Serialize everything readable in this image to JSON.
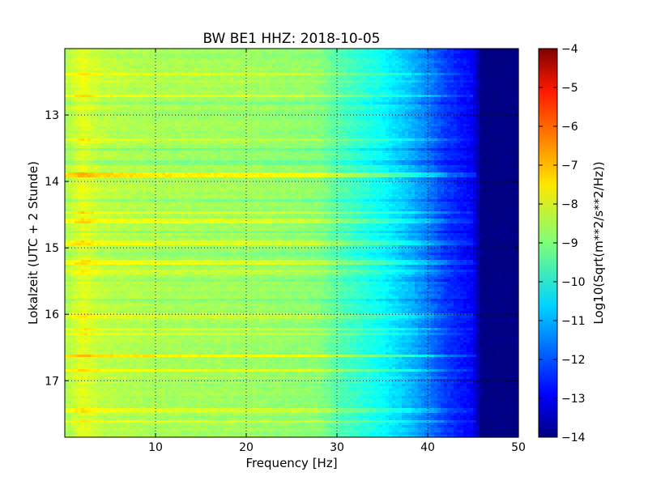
{
  "chart_data": {
    "type": "heatmap",
    "title": "BW BE1 HHZ: 2018-10-05",
    "xlabel": "Frequency [Hz]",
    "ylabel": "Lokalzeit (UTC + 2 Stunde)",
    "xlim": [
      0,
      50
    ],
    "ylim": [
      17.85,
      12.0
    ],
    "y_axis_inverted": true,
    "x_ticks": [
      10,
      20,
      30,
      40,
      50
    ],
    "y_ticks": [
      13,
      14,
      15,
      16,
      17
    ],
    "grid": true,
    "grid_style": "dotted",
    "colormap": "jet",
    "colorbar": {
      "label": "Log10(Sqrt(m**2/s**2/Hz))",
      "range": [
        -14,
        -4
      ],
      "ticks": [
        -4,
        -5,
        -6,
        -7,
        -8,
        -9,
        -10,
        -11,
        -12,
        -13,
        -14
      ]
    },
    "frequency_profile": {
      "frequency_hz": [
        0,
        2,
        4,
        10,
        20,
        28,
        30,
        35,
        38,
        40,
        42,
        45,
        46,
        50
      ],
      "log10_amplitude": [
        -8.6,
        -8.0,
        -8.4,
        -8.6,
        -8.7,
        -8.9,
        -9.4,
        -10.2,
        -10.9,
        -11.5,
        -12.2,
        -12.8,
        -14.0,
        -14.0
      ]
    },
    "time_band_anomalies": [
      {
        "time": 12.38,
        "log10_offset": 0.6
      },
      {
        "time": 12.5,
        "log10_offset": 0.4
      },
      {
        "time": 12.72,
        "log10_offset": 0.6
      },
      {
        "time": 12.82,
        "log10_offset": -0.4
      },
      {
        "time": 13.38,
        "log10_offset": 0.6
      },
      {
        "time": 13.52,
        "log10_offset": -0.4
      },
      {
        "time": 13.72,
        "log10_offset": -0.4
      },
      {
        "time": 13.9,
        "log10_offset": 1.1
      },
      {
        "time": 14.28,
        "log10_offset": -0.4
      },
      {
        "time": 14.46,
        "log10_offset": 0.6
      },
      {
        "time": 14.6,
        "log10_offset": 0.6
      },
      {
        "time": 14.75,
        "log10_offset": -0.4
      },
      {
        "time": 14.92,
        "log10_offset": 0.6
      },
      {
        "time": 15.1,
        "log10_offset": -0.4
      },
      {
        "time": 15.22,
        "log10_offset": 0.6
      },
      {
        "time": 15.36,
        "log10_offset": 0.4
      },
      {
        "time": 15.5,
        "log10_offset": -0.4
      },
      {
        "time": 15.78,
        "log10_offset": -0.4
      },
      {
        "time": 16.02,
        "log10_offset": 0.4
      },
      {
        "time": 16.22,
        "log10_offset": 0.6
      },
      {
        "time": 16.3,
        "log10_offset": 0.4
      },
      {
        "time": 16.62,
        "log10_offset": 1.0
      },
      {
        "time": 16.85,
        "log10_offset": 0.6
      },
      {
        "time": 16.95,
        "log10_offset": 0.4
      },
      {
        "time": 17.45,
        "log10_offset": 0.6
      },
      {
        "time": 17.62,
        "log10_offset": 0.6
      }
    ]
  }
}
